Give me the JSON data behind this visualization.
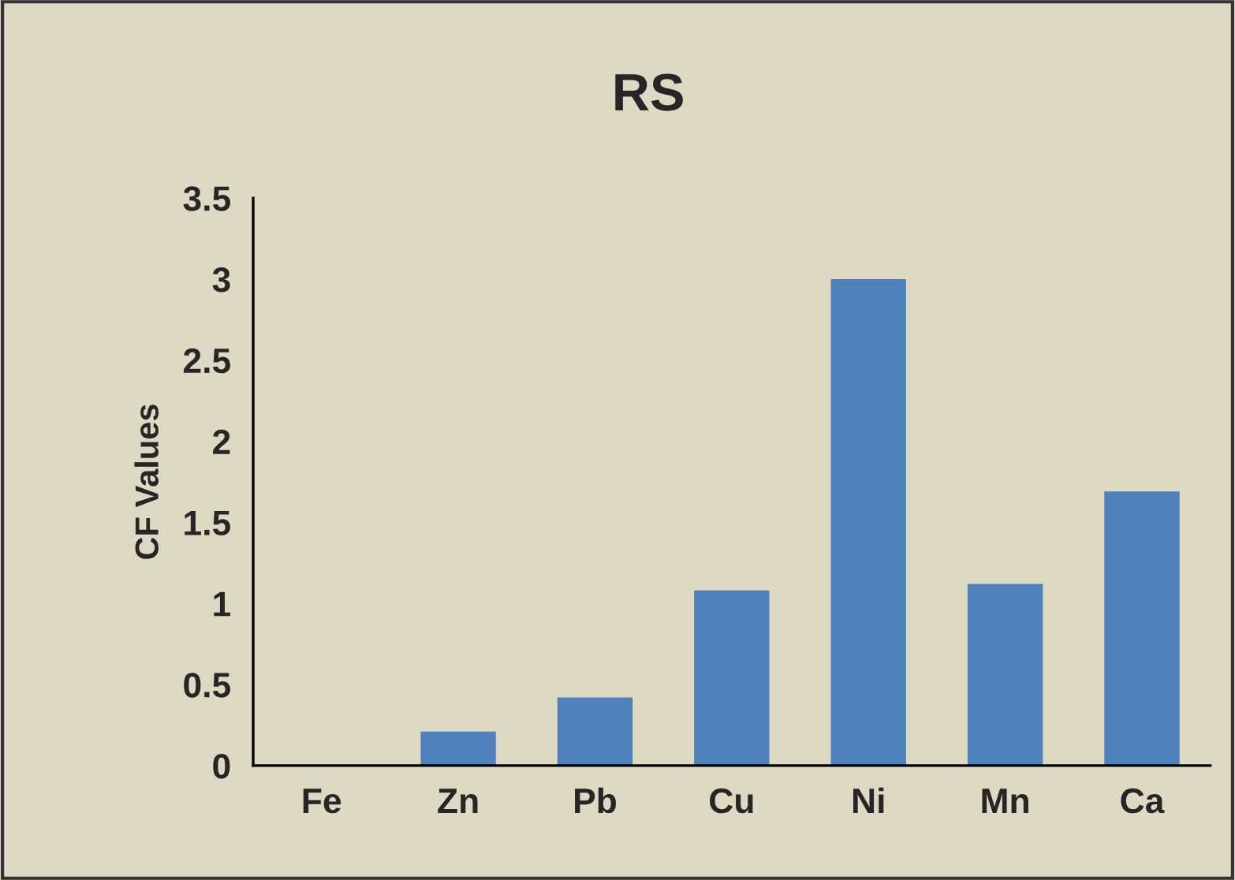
{
  "chart_data": {
    "type": "bar",
    "title": "RS",
    "ylabel": "CF Values",
    "categories": [
      "Fe",
      "Zn",
      "Pb",
      "Cu",
      "Ni",
      "Mn",
      "Ca"
    ],
    "values": [
      0,
      0.21,
      0.42,
      1.08,
      3.0,
      1.12,
      1.69
    ],
    "color": "#4f81bd",
    "ylim": [
      0,
      3.5
    ],
    "yticks": [
      0,
      0.5,
      1,
      1.5,
      2,
      2.5,
      3,
      3.5
    ],
    "grid": false,
    "legend": false
  }
}
